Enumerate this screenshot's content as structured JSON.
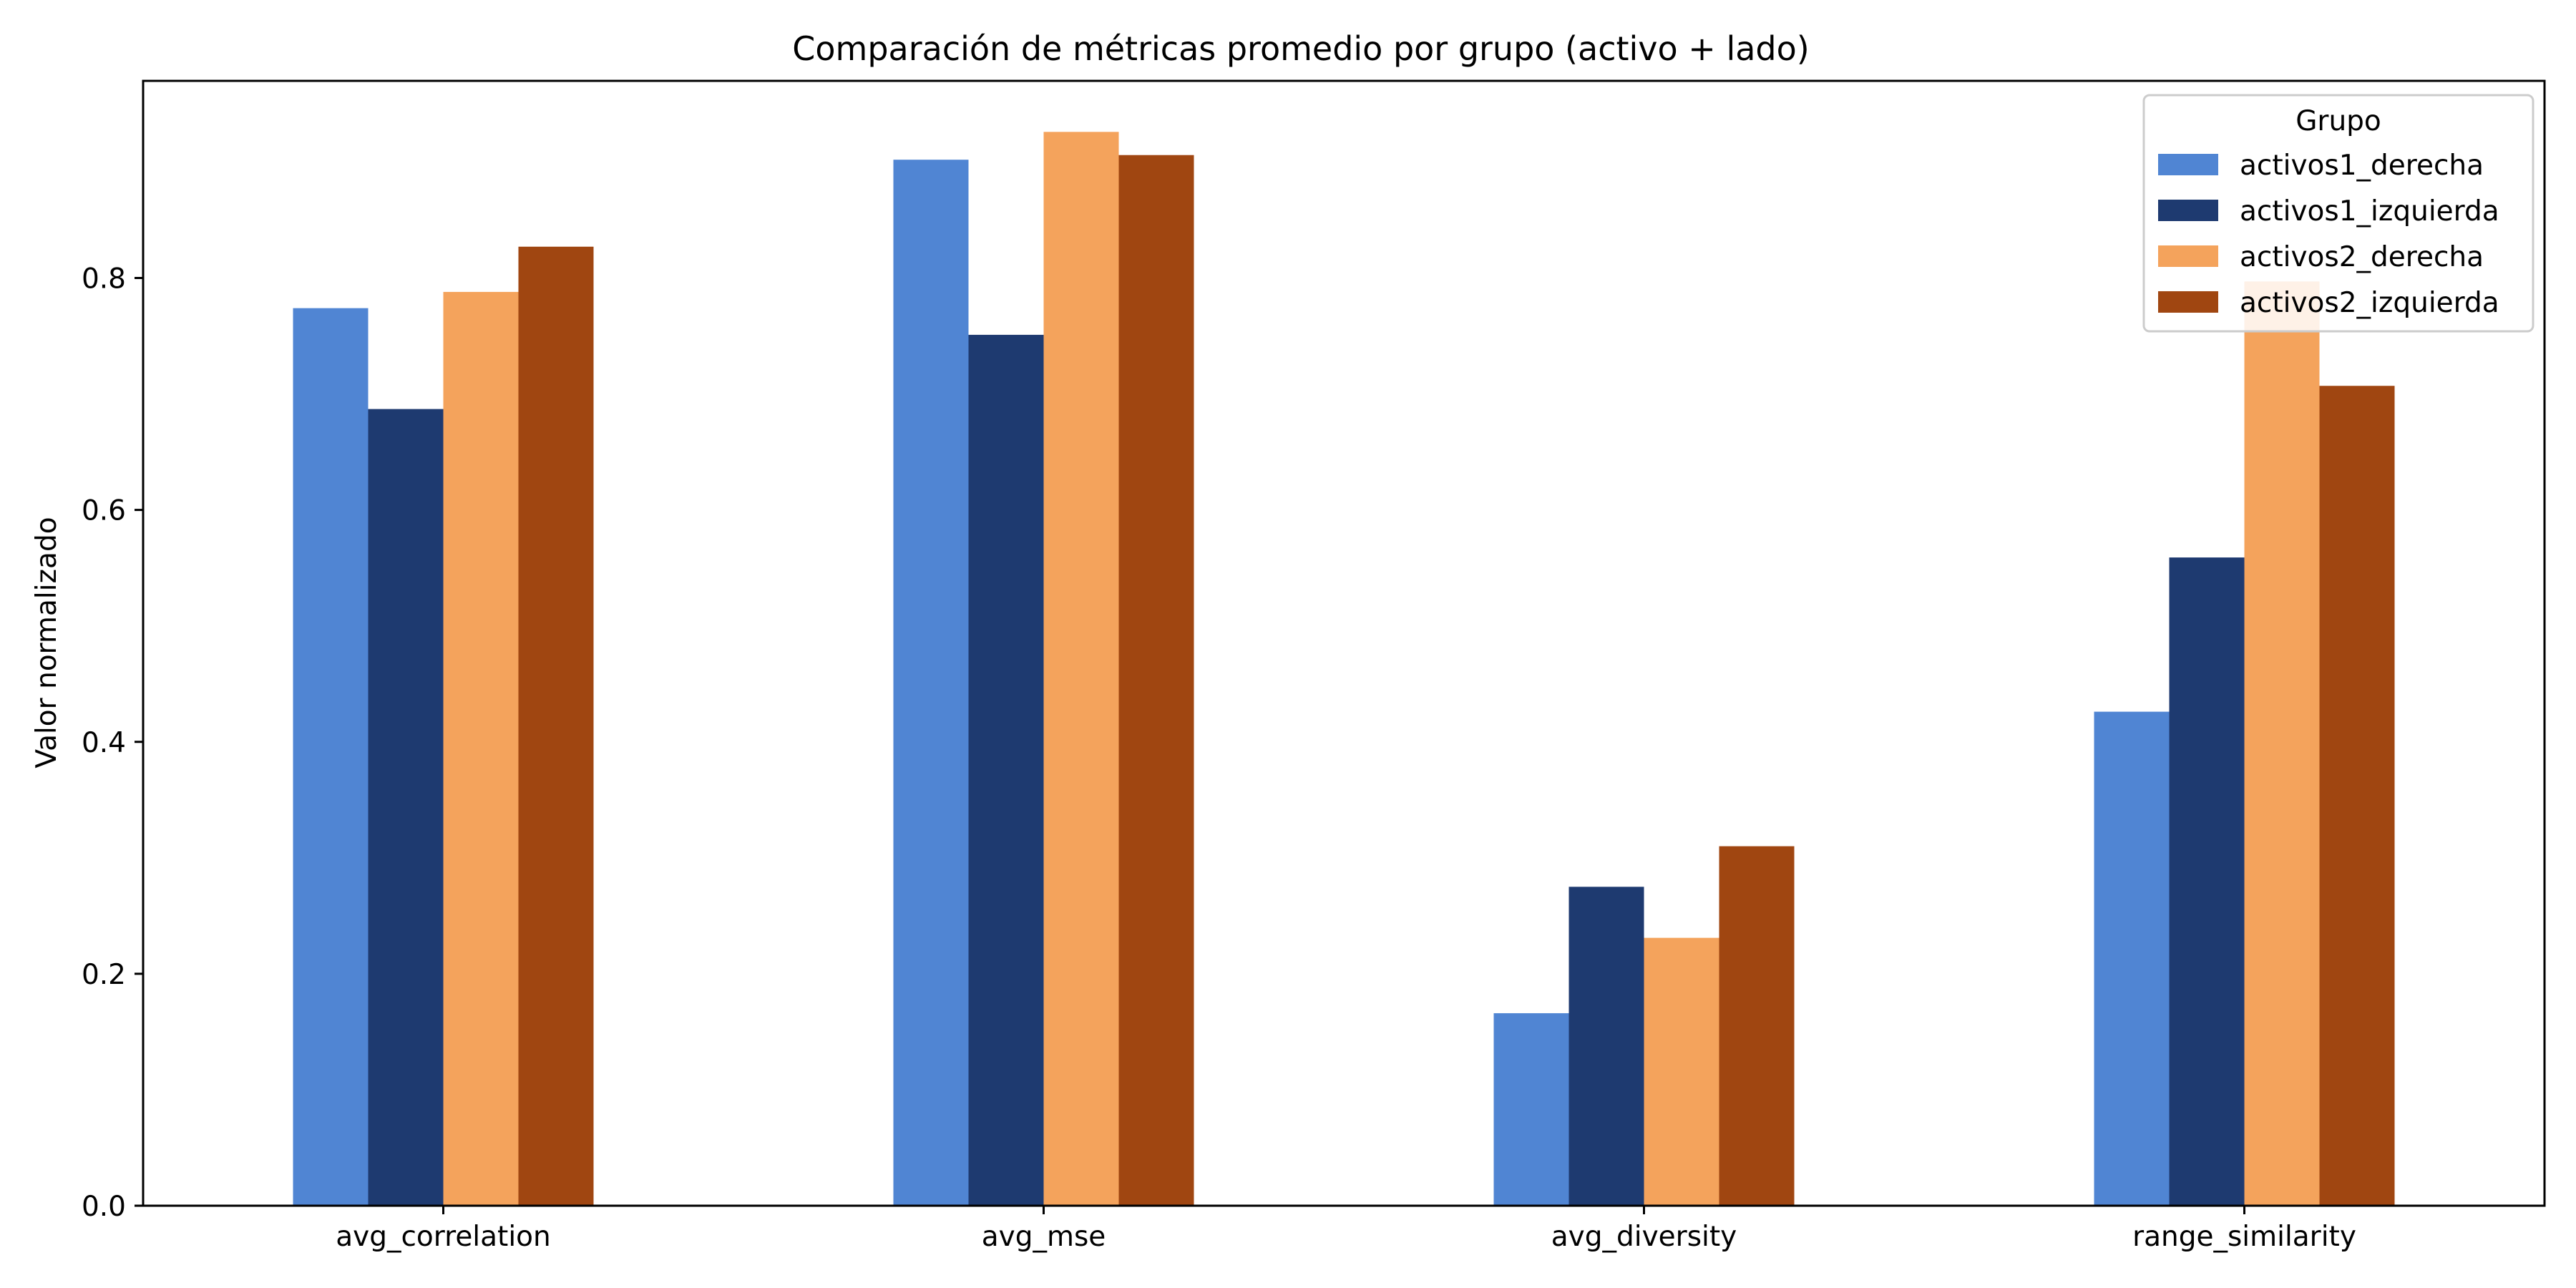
{
  "chart_data": {
    "type": "bar",
    "title": "Comparación de métricas promedio por grupo (activo + lado)",
    "xlabel": "",
    "ylabel": "Valor normalizado",
    "categories": [
      "avg_correlation",
      "avg_mse",
      "avg_diversity",
      "range_similarity"
    ],
    "series": [
      {
        "name": "activos1_derecha",
        "color": "#5085d3",
        "values": [
          0.774,
          0.902,
          0.166,
          0.426
        ]
      },
      {
        "name": "activos1_izquierda",
        "color": "#1e3a70",
        "values": [
          0.687,
          0.751,
          0.275,
          0.559
        ]
      },
      {
        "name": "activos2_derecha",
        "color": "#f4a35c",
        "values": [
          0.788,
          0.926,
          0.231,
          0.797
        ]
      },
      {
        "name": "activos2_izquierda",
        "color": "#a04611",
        "values": [
          0.827,
          0.906,
          0.31,
          0.707
        ]
      }
    ],
    "yticks": [
      0.0,
      0.2,
      0.4,
      0.6,
      0.8
    ],
    "ytick_labels": [
      "0.0",
      "0.2",
      "0.4",
      "0.6",
      "0.8"
    ],
    "ylim": [
      0,
      0.97
    ],
    "grid": false,
    "legend": {
      "title": "Grupo",
      "position": "top-right"
    }
  }
}
